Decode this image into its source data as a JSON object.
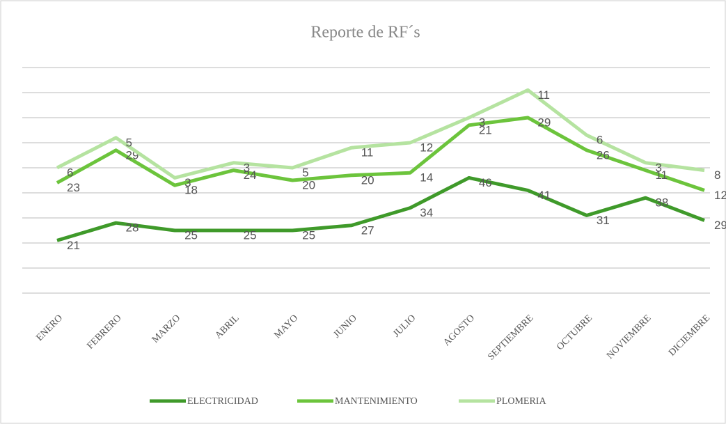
{
  "chart_data": {
    "type": "line",
    "title": "Reporte de RF´s",
    "stacked": true,
    "categories": [
      "ENERO",
      "FEBRERO",
      "MARZO",
      "ABRIL",
      "MAYO",
      "JUNIO",
      "JULIO",
      "AGOSTO",
      "SEPTIEMBRE",
      "OCTUBRE",
      "NOVIEMBRE",
      "DICIEMBRE"
    ],
    "series": [
      {
        "name": "ELECTRICIDAD",
        "color": "#3f9a2a",
        "values": [
          21,
          28,
          25,
          25,
          25,
          27,
          34,
          46,
          41,
          31,
          38,
          29
        ]
      },
      {
        "name": "MANTENIMIENTO",
        "color": "#6cc43c",
        "values": [
          23,
          29,
          18,
          24,
          20,
          20,
          14,
          21,
          29,
          26,
          11,
          12
        ]
      },
      {
        "name": "PLOMERIA",
        "color": "#b5e3a0",
        "values": [
          6,
          5,
          3,
          3,
          5,
          11,
          12,
          3,
          11,
          6,
          3,
          8
        ]
      }
    ],
    "ylim": [
      0,
      90
    ],
    "yticks": [
      0,
      10,
      20,
      30,
      40,
      50,
      60,
      70,
      80,
      90
    ],
    "grid": true,
    "legend": "bottom"
  }
}
